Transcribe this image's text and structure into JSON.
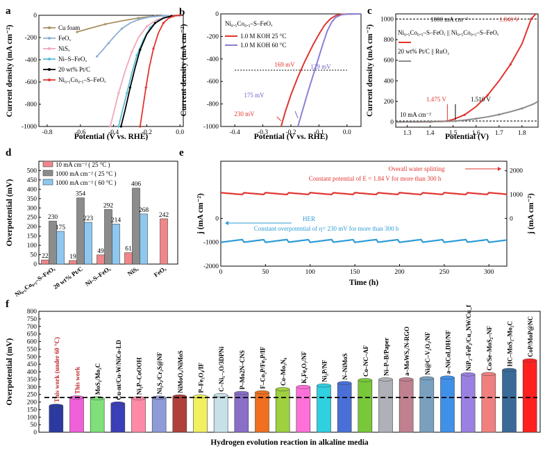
{
  "chart_data": [
    {
      "panel": "a",
      "type": "line",
      "xlabel": "Potential (V vs. RHE)",
      "ylabel": "Current density (mA cm⁻²)",
      "xlim": [
        -0.85,
        0.02
      ],
      "ylim": [
        -1000,
        0
      ],
      "xticks": [
        "-0.8",
        "-0.6",
        "-0.4",
        "-0.2",
        "0.0"
      ],
      "yticks": [
        "0",
        "-200",
        "-400",
        "-600",
        "-800",
        "-1000"
      ],
      "series": [
        {
          "name": "Cu foam",
          "color": "#a89060",
          "x": [
            -0.62,
            -0.55,
            -0.45,
            -0.35,
            -0.25,
            -0.2,
            -0.15,
            -0.08,
            0.0
          ],
          "y": [
            -150,
            -120,
            -80,
            -50,
            -25,
            -15,
            -8,
            -3,
            0
          ]
        },
        {
          "name": "FeOₓ",
          "color": "#8caed6",
          "x": [
            -0.5,
            -0.47,
            -0.43,
            -0.39,
            -0.35,
            -0.3,
            -0.25,
            -0.18,
            -0.1,
            0.0
          ],
          "y": [
            -370,
            -320,
            -250,
            -180,
            -120,
            -70,
            -38,
            -15,
            -5,
            0
          ]
        },
        {
          "name": "NiSₓ",
          "color": "#f0a8b8",
          "x": [
            -0.42,
            -0.4,
            -0.37,
            -0.33,
            -0.29,
            -0.25,
            -0.2,
            -0.14,
            -0.07,
            0.0
          ],
          "y": [
            -1000,
            -880,
            -700,
            -500,
            -330,
            -200,
            -100,
            -40,
            -10,
            0
          ]
        },
        {
          "name": "Ni–S–FeOₓ",
          "color": "#5bbcd6",
          "x": [
            -0.37,
            -0.35,
            -0.32,
            -0.29,
            -0.26,
            -0.22,
            -0.18,
            -0.13,
            -0.07,
            0.0
          ],
          "y": [
            -1000,
            -880,
            -700,
            -520,
            -360,
            -220,
            -110,
            -45,
            -12,
            0
          ]
        },
        {
          "name": "20 wt% Pt/C",
          "color": "#000000",
          "x": [
            -0.355,
            -0.33,
            -0.3,
            -0.27,
            -0.24,
            -0.2,
            -0.15,
            -0.1,
            -0.05,
            0.0
          ],
          "y": [
            -1000,
            -850,
            -650,
            -470,
            -310,
            -170,
            -70,
            -25,
            -6,
            0
          ]
        },
        {
          "name": "Ni₀.₅Co₀.₅–S–FeOₓ",
          "color": "#e0342f",
          "x": [
            -0.24,
            -0.225,
            -0.205,
            -0.185,
            -0.16,
            -0.13,
            -0.1,
            -0.07,
            -0.04,
            -0.015,
            0.0
          ],
          "y": [
            -1000,
            -850,
            -650,
            -470,
            -300,
            -160,
            -70,
            -28,
            -8,
            -2,
            0
          ]
        }
      ]
    },
    {
      "panel": "b",
      "type": "line",
      "title": "Ni₀.₅Co₀.₅–S–FeOₓ",
      "xlabel": "Potential (V vs. RHE)",
      "ylabel": "Current density (mA cm⁻²)",
      "xlim": [
        -0.45,
        0.05
      ],
      "ylim": [
        -1000,
        0
      ],
      "xticks": [
        "-0.4",
        "-0.3",
        "-0.2",
        "-0.1",
        "0.0"
      ],
      "yticks": [
        "0",
        "-200",
        "-400",
        "-600",
        "-800",
        "-1000"
      ],
      "series": [
        {
          "name": "1.0 M KOH 25 °C",
          "color": "#e0342f",
          "x": [
            -0.235,
            -0.22,
            -0.2,
            -0.175,
            -0.15,
            -0.12,
            -0.1,
            -0.08,
            -0.06,
            -0.04,
            -0.02,
            0.0,
            0.05
          ],
          "y": [
            -1000,
            -870,
            -720,
            -560,
            -420,
            -270,
            -180,
            -100,
            -45,
            -15,
            -4,
            -1,
            0
          ]
        },
        {
          "name": "1.0 M KOH 60 °C",
          "color": "#8a7fd8",
          "x": [
            -0.175,
            -0.16,
            -0.14,
            -0.12,
            -0.1,
            -0.085,
            -0.07,
            -0.055,
            -0.04,
            -0.02,
            0.0,
            0.05
          ],
          "y": [
            -1000,
            -870,
            -700,
            -540,
            -380,
            -260,
            -150,
            -75,
            -30,
            -8,
            -2,
            0
          ]
        }
      ],
      "annotations": [
        "169 mV",
        "129 mV",
        "175 mV",
        "230 mV"
      ]
    },
    {
      "panel": "c",
      "type": "line",
      "xlabel": "Potential (V)",
      "ylabel": "Current density (mA cm⁻²)",
      "xlim": [
        1.25,
        1.87
      ],
      "ylim": [
        -50,
        1050
      ],
      "xticks": [
        "1.3",
        "1.4",
        "1.5",
        "1.6",
        "1.7",
        "1.8"
      ],
      "yticks": [
        "0",
        "200",
        "400",
        "600",
        "800",
        "1000"
      ],
      "series": [
        {
          "name": "Ni₀.₅Co₀.₅–S–FeOₓ || Ni₀.₅Co₀.₅–S–FeOₓ",
          "color": "#e0342f",
          "x": [
            1.25,
            1.4,
            1.45,
            1.475,
            1.5,
            1.55,
            1.6,
            1.65,
            1.7,
            1.75,
            1.8,
            1.84,
            1.86
          ],
          "y": [
            0,
            2,
            5,
            10,
            25,
            70,
            150,
            260,
            400,
            560,
            760,
            1000,
            1100
          ]
        },
        {
          "name": "20 wt% Pt/C || RuO₂",
          "color": "#8a8a8a",
          "x": [
            1.25,
            1.4,
            1.5,
            1.51,
            1.55,
            1.6,
            1.65,
            1.7,
            1.75,
            1.8,
            1.85,
            1.87
          ],
          "y": [
            0,
            3,
            8,
            10,
            18,
            32,
            50,
            72,
            100,
            132,
            175,
            200
          ]
        }
      ],
      "annotations": [
        "1000 mA cm⁻²",
        "1.840 V",
        "10 mA cm⁻²",
        "1.475 V",
        "1.510 V"
      ]
    },
    {
      "panel": "d",
      "type": "bar",
      "ylabel": "Overpotential (mV)",
      "ylim": [
        0,
        550
      ],
      "yticks": [
        "0",
        "50",
        "100",
        "150",
        "200",
        "250",
        "300",
        "350",
        "400",
        "450",
        "500"
      ],
      "categories": [
        "Ni₀.₅Co₀.₅–S–FeOₓ",
        "20 wt% Pt/C",
        "Ni–S–FeOₓ",
        "NiSₓ",
        "FeOₓ"
      ],
      "series": [
        {
          "name": "10 mA cm⁻² ( 25 °C )",
          "color": "#f0868a",
          "values": [
            22,
            19,
            49,
            61,
            242
          ]
        },
        {
          "name": "1000 mA cm⁻² ( 25 °C )",
          "color": "#8c8c8c",
          "values": [
            230,
            354,
            292,
            406,
            null
          ]
        },
        {
          "name": "1000 mA cm⁻² ( 60 °C )",
          "color": "#8ec8f0",
          "values": [
            175,
            223,
            214,
            268,
            null
          ]
        }
      ],
      "labels": [
        "22",
        "230",
        "175",
        "19",
        "354",
        "223",
        "49",
        "292",
        "214",
        "61",
        "406",
        "268",
        "242"
      ]
    },
    {
      "panel": "e",
      "type": "line",
      "xlabel": "Time (h)",
      "ylabel": "j (mA cm⁻²)",
      "ylabel_right": "j (mA cm⁻²)",
      "xlim": [
        0,
        320
      ],
      "ylim": [
        -2000,
        2400
      ],
      "xticks": [
        "0",
        "50",
        "100",
        "150",
        "200",
        "250",
        "300"
      ],
      "yticks_left": [
        "0",
        "-1000",
        "-2000"
      ],
      "yticks_right": [
        "2000",
        "1000",
        "0"
      ],
      "series": [
        {
          "name": "Overall water splitting",
          "color": "#e0342f",
          "x": [
            0,
            320
          ],
          "y": [
            1000,
            1000
          ]
        },
        {
          "name": "HER",
          "color": "#2d9bd6",
          "x": [
            0,
            320
          ],
          "y": [
            -1000,
            -1000
          ]
        }
      ],
      "annotations": [
        "Overall water splitting",
        "Constant potential of E = 1.84 V for more than 300 h",
        "HER",
        "Constant overpotential of η= 230 mV for more than 300 h"
      ]
    },
    {
      "panel": "f",
      "type": "bar",
      "xlabel": "Hydrogen evolution reaction in alkaline media",
      "ylabel": "Overpotential (mV)",
      "ylim": [
        0,
        800
      ],
      "yticks": [
        "0",
        "50",
        "100",
        "150",
        "200",
        "250",
        "300",
        "350",
        "400",
        "450",
        "500",
        "550",
        "600",
        "650",
        "700",
        "750",
        "800"
      ],
      "reference_line": 230,
      "categories": [
        "This work (under 60 °C)",
        "This work",
        "MoS₂/Mo₂C",
        "Cu-nt/Cu-W/NiCo-LD",
        "Ni₂P–CoOOH",
        "Ni₃S₂/Cr₂S@NF",
        "NiMoOₓ/NiMoS",
        "P–Fe₃O₄/IF",
        "C–Ni₁₋ₓO/3DPNi",
        "P–Mo2N–CNS",
        "F–Co₂P/Fe₂P/IF",
        "Co–Mo₅N₆",
        "K₂Fe₄O₇/NF",
        "Ni₂P/NF",
        "N–NiMoS",
        "Co–NC–AF",
        "Ni–P–B/Paper",
        "a–MoWSₓ/N-RGO",
        "Ni@C–V₂O₃/NF",
        "a–NiCoLDH/NF",
        "NiP₂–FeP₂/Cu_NW/Cu_f",
        "Co/Se–MoS₂–NF",
        "HC–MoS₂–Mo₂C",
        "CoP/MoP@NC"
      ],
      "values": [
        175,
        230,
        225,
        190,
        225,
        229,
        237,
        237,
        245,
        260,
        264,
        285,
        300,
        310,
        325,
        345,
        350,
        350,
        357,
        362,
        383,
        385,
        412,
        475
      ],
      "colors": [
        "#2b3aa0",
        "#f060d8",
        "#7fe07a",
        "#3a3eb8",
        "#ff8aa8",
        "#8f9ad8",
        "#b0403a",
        "#f0f060",
        "#c8e0e8",
        "#8a6ec8",
        "#f07020",
        "#9ed040",
        "#ff70d8",
        "#2fd0e0",
        "#4a70d8",
        "#78c83a",
        "#b0b0b8",
        "#c08090",
        "#7aa0c0",
        "#4090e8",
        "#9a80e0",
        "#f08080",
        "#3a6a98",
        "#ff2020"
      ]
    }
  ],
  "panel_letters": [
    "a",
    "b",
    "c",
    "d",
    "e",
    "f"
  ]
}
